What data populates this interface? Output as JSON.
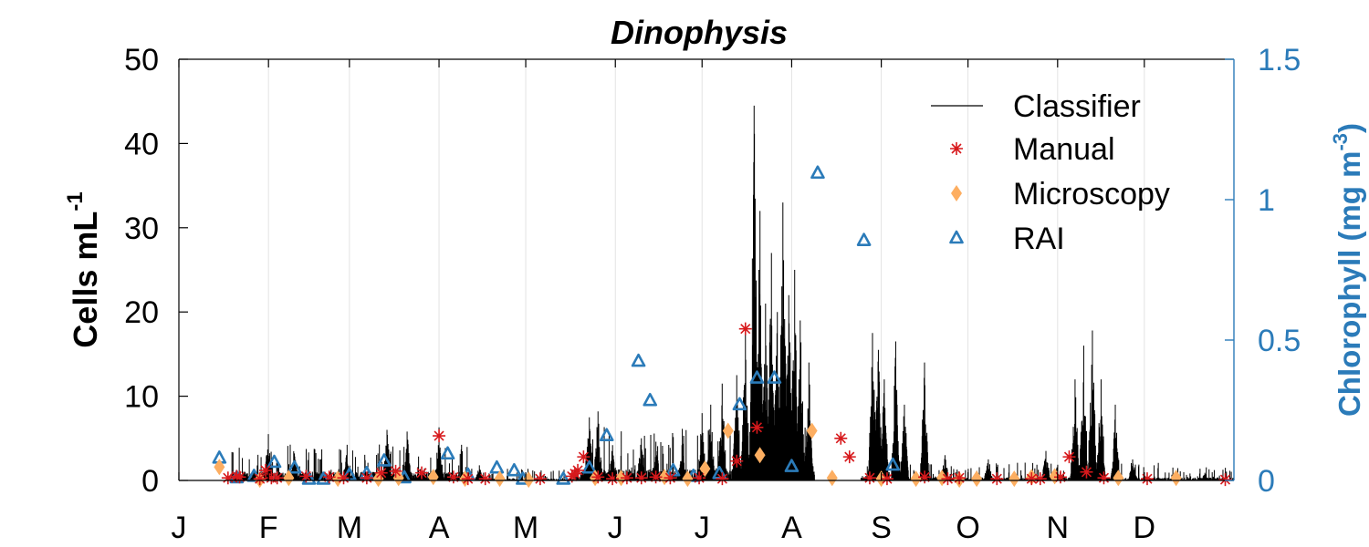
{
  "chart_data": {
    "type": "line",
    "title": "Dinophysis",
    "ylabel": "Cells mL",
    "ylabel_sup": "-1",
    "ylabel_right": "Chlorophyll (mg m",
    "ylabel_right_sup": "-3",
    "ylabel_right_close": ")",
    "xlim": [
      0,
      365
    ],
    "ylim": [
      0,
      50
    ],
    "ylim_right": [
      0,
      1.5
    ],
    "month_ticks": [
      {
        "label": "J",
        "day": 0
      },
      {
        "label": "F",
        "day": 31
      },
      {
        "label": "M",
        "day": 59
      },
      {
        "label": "A",
        "day": 90
      },
      {
        "label": "M",
        "day": 120
      },
      {
        "label": "J",
        "day": 151
      },
      {
        "label": "J",
        "day": 181
      },
      {
        "label": "A",
        "day": 212
      },
      {
        "label": "S",
        "day": 243
      },
      {
        "label": "O",
        "day": 273
      },
      {
        "label": "N",
        "day": 304
      },
      {
        "label": "D",
        "day": 334
      }
    ],
    "yticks": [
      {
        "v": 0,
        "label": "0"
      },
      {
        "v": 10,
        "label": "10"
      },
      {
        "v": 20,
        "label": "20"
      },
      {
        "v": 30,
        "label": "30"
      },
      {
        "v": 40,
        "label": "40"
      },
      {
        "v": 50,
        "label": "50"
      }
    ],
    "yticks_right": [
      {
        "v": 0,
        "label": "0"
      },
      {
        "v": 0.5,
        "label": "0.5"
      },
      {
        "v": 1,
        "label": "1"
      },
      {
        "v": 1.5,
        "label": "1.5"
      }
    ],
    "grid": "vertical at month ticks",
    "legend_position": "top-right",
    "colors": {
      "classifier": "#000000",
      "manual": "#d7191c",
      "microscopy": "#fdae61",
      "rai": "#2b7bb9"
    },
    "series": [
      {
        "name": "Classifier",
        "style": "line",
        "axis": "left",
        "segments": [
          {
            "start": 18,
            "end": 100,
            "base": 1.2,
            "noise": 1.6
          },
          {
            "start": 100,
            "end": 139,
            "base": 0.25,
            "noise": 0.6
          },
          {
            "start": 139,
            "end": 220,
            "base": 1.5,
            "noise": 2.5
          },
          {
            "start": 236,
            "end": 345,
            "base": 0.4,
            "noise": 0.9
          },
          {
            "start": 345,
            "end": 365,
            "base": 0.4,
            "noise": 0.6
          }
        ],
        "peaks": [
          [
            31,
            5.5
          ],
          [
            40,
            3.2
          ],
          [
            58,
            3.0
          ],
          [
            72,
            6.0
          ],
          [
            79,
            5.8
          ],
          [
            90,
            6.3
          ],
          [
            104,
            1.8
          ],
          [
            142,
            7.5
          ],
          [
            145,
            8.2
          ],
          [
            150,
            4.2
          ],
          [
            160,
            5.0
          ],
          [
            165,
            4.6
          ],
          [
            174,
            4.2
          ],
          [
            181,
            8.0
          ],
          [
            184,
            9.0
          ],
          [
            188,
            11.5
          ],
          [
            193,
            12.5
          ],
          [
            196,
            18.0
          ],
          [
            199,
            44.5
          ],
          [
            201,
            32.0
          ],
          [
            203,
            21.0
          ],
          [
            205,
            27.0
          ],
          [
            207,
            20.0
          ],
          [
            209,
            33.0
          ],
          [
            211,
            22.0
          ],
          [
            213,
            25.0
          ],
          [
            215,
            19.0
          ],
          [
            218,
            14.0
          ],
          [
            240,
            17.5
          ],
          [
            242,
            15.5
          ],
          [
            244,
            12.0
          ],
          [
            248,
            16.5
          ],
          [
            251,
            9.0
          ],
          [
            258,
            14.0
          ],
          [
            265,
            3.0
          ],
          [
            280,
            2.5
          ],
          [
            300,
            3.5
          ],
          [
            310,
            12.0
          ],
          [
            313,
            16.0
          ],
          [
            316,
            17.8
          ],
          [
            319,
            12.0
          ],
          [
            324,
            9.0
          ],
          [
            330,
            2.5
          ],
          [
            355,
            0.9
          ]
        ]
      },
      {
        "name": "Manual",
        "style": "asterisk",
        "axis": "left",
        "points": [
          [
            17,
            0.3
          ],
          [
            20,
            0.5
          ],
          [
            21,
            0.4
          ],
          [
            28,
            0.2
          ],
          [
            30,
            1.2
          ],
          [
            32,
            0.3
          ],
          [
            34,
            0.3
          ],
          [
            44,
            0.5
          ],
          [
            52,
            0.4
          ],
          [
            57,
            0.3
          ],
          [
            65,
            0.3
          ],
          [
            70,
            0.9
          ],
          [
            75,
            1.1
          ],
          [
            84,
            0.9
          ],
          [
            90,
            5.3
          ],
          [
            95,
            0.4
          ],
          [
            100,
            0.2
          ],
          [
            106,
            0.2
          ],
          [
            125,
            0.2
          ],
          [
            136,
            0.5
          ],
          [
            137,
            0.8
          ],
          [
            138,
            1.2
          ],
          [
            140,
            2.8
          ],
          [
            145,
            0.4
          ],
          [
            150,
            0.2
          ],
          [
            155,
            0.3
          ],
          [
            160,
            0.3
          ],
          [
            165,
            0.4
          ],
          [
            170,
            0.3
          ],
          [
            180,
            0.3
          ],
          [
            188,
            0.2
          ],
          [
            193,
            2.3
          ],
          [
            196,
            18.0
          ],
          [
            200,
            6.3
          ],
          [
            229,
            5.0
          ],
          [
            232,
            2.8
          ],
          [
            239,
            0.3
          ],
          [
            245,
            0.2
          ],
          [
            258,
            0.4
          ],
          [
            266,
            0.2
          ],
          [
            270,
            0.3
          ],
          [
            283,
            0.2
          ],
          [
            295,
            0.2
          ],
          [
            298,
            0.2
          ],
          [
            305,
            0.4
          ],
          [
            308,
            2.8
          ],
          [
            314,
            1.0
          ],
          [
            320,
            0.3
          ],
          [
            335,
            0.2
          ],
          [
            362,
            0.1
          ]
        ]
      },
      {
        "name": "Microscopy",
        "style": "diamond",
        "axis": "left",
        "points": [
          [
            14,
            1.6
          ],
          [
            28,
            0.1
          ],
          [
            38,
            0.3
          ],
          [
            55,
            0.2
          ],
          [
            69,
            0.2
          ],
          [
            76,
            0.3
          ],
          [
            88,
            0.4
          ],
          [
            99,
            0.2
          ],
          [
            111,
            0.2
          ],
          [
            121,
            0.1
          ],
          [
            144,
            0.3
          ],
          [
            153,
            0.3
          ],
          [
            168,
            0.4
          ],
          [
            176,
            0.2
          ],
          [
            182,
            1.4
          ],
          [
            190,
            5.9
          ],
          [
            201,
            3.0
          ],
          [
            219,
            5.9
          ],
          [
            226,
            0.3
          ],
          [
            243,
            0.2
          ],
          [
            255,
            0.2
          ],
          [
            264,
            0.3
          ],
          [
            270,
            0.1
          ],
          [
            276,
            0.2
          ],
          [
            289,
            0.2
          ],
          [
            295,
            0.4
          ],
          [
            303,
            0.5
          ],
          [
            325,
            0.3
          ],
          [
            345,
            0.3
          ]
        ]
      },
      {
        "name": "RAI",
        "style": "triangle",
        "axis": "right",
        "points": [
          [
            14,
            0.08
          ],
          [
            20,
            0.01
          ],
          [
            26,
            0.015
          ],
          [
            33,
            0.065
          ],
          [
            40,
            0.045
          ],
          [
            45,
            0.005
          ],
          [
            50,
            0.005
          ],
          [
            59,
            0.02
          ],
          [
            65,
            0.025
          ],
          [
            71,
            0.07
          ],
          [
            78,
            0.01
          ],
          [
            93,
            0.095
          ],
          [
            100,
            0.02
          ],
          [
            110,
            0.045
          ],
          [
            116,
            0.035
          ],
          [
            119,
            0.005
          ],
          [
            133,
            0.005
          ],
          [
            142,
            0.045
          ],
          [
            148,
            0.16
          ],
          [
            159,
            0.425
          ],
          [
            163,
            0.285
          ],
          [
            171,
            0.035
          ],
          [
            178,
            0.015
          ],
          [
            187,
            0.025
          ],
          [
            194,
            0.27
          ],
          [
            200,
            0.365
          ],
          [
            206,
            0.365
          ],
          [
            212,
            0.05
          ],
          [
            221,
            1.095
          ],
          [
            237,
            0.855
          ],
          [
            247,
            0.055
          ]
        ]
      }
    ]
  }
}
